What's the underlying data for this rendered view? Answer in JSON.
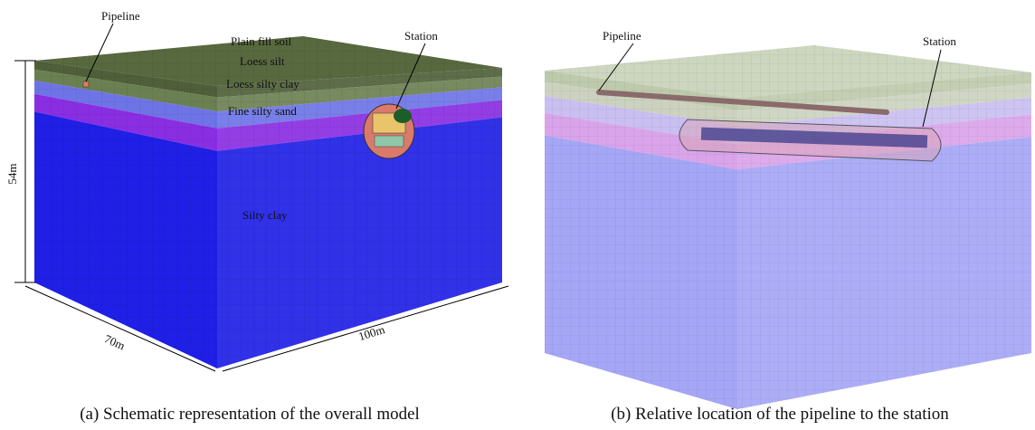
{
  "panels": [
    {
      "callouts": [
        "Pipeline",
        "Station"
      ],
      "layers": [
        "Plain fill soil",
        "Loess silt",
        "Loess silty clay",
        "Fine silty sand",
        "Silty clay"
      ],
      "dimensions": [
        "54m",
        "70m",
        "100m"
      ],
      "caption": "(a) Schematic representation of the overall model"
    },
    {
      "callouts": [
        "Pipeline",
        "Station"
      ],
      "caption": "(b) Relative location of the pipeline to the station"
    }
  ]
}
